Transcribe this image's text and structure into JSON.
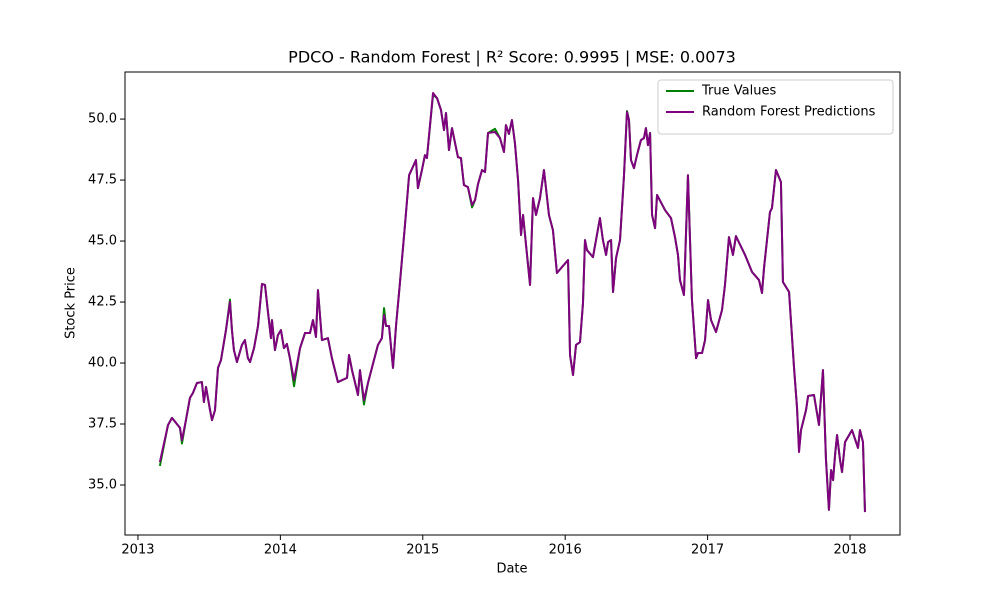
{
  "chart_data": {
    "type": "line",
    "title": "PDCO - Random Forest | R² Score: 0.9995 | MSE: 0.0073",
    "x_label": "Date",
    "y_label": "Stock Price",
    "x": [
      2013.154,
      2013.211,
      2013.239,
      2013.295,
      2013.309,
      2013.337,
      2013.365,
      2013.386,
      2013.414,
      2013.449,
      2013.463,
      2013.478,
      2013.506,
      2013.52,
      2013.541,
      2013.562,
      2013.583,
      2013.618,
      2013.646,
      2013.66,
      2013.674,
      2013.695,
      2013.73,
      2013.751,
      2013.772,
      2013.787,
      2013.815,
      2013.843,
      2013.871,
      2013.892,
      2013.913,
      2013.934,
      2013.941,
      2013.962,
      2013.983,
      2014.004,
      2014.025,
      2014.046,
      2014.067,
      2014.096,
      2014.138,
      2014.173,
      2014.208,
      2014.229,
      2014.25,
      2014.264,
      2014.292,
      2014.334,
      2014.362,
      2014.404,
      2014.468,
      2014.482,
      2014.503,
      2014.545,
      2014.559,
      2014.587,
      2014.615,
      2014.685,
      2014.713,
      2014.728,
      2014.742,
      2014.763,
      2014.791,
      2014.812,
      2014.84,
      2014.875,
      2014.904,
      2014.952,
      2014.966,
      2014.994,
      2015.015,
      2015.029,
      2015.072,
      2015.1,
      2015.128,
      2015.149,
      2015.163,
      2015.184,
      2015.205,
      2015.247,
      2015.268,
      2015.289,
      2015.317,
      2015.346,
      2015.367,
      2015.388,
      2015.416,
      2015.437,
      2015.458,
      2015.507,
      2015.542,
      2015.57,
      2015.584,
      2015.605,
      2015.626,
      2015.647,
      2015.669,
      2015.69,
      2015.704,
      2015.718,
      2015.739,
      2015.753,
      2015.774,
      2015.795,
      2015.823,
      2015.851,
      2015.886,
      2015.914,
      2015.942,
      2015.971,
      2016.02,
      2016.034,
      2016.055,
      2016.076,
      2016.104,
      2016.125,
      2016.139,
      2016.153,
      2016.195,
      2016.244,
      2016.265,
      2016.287,
      2016.301,
      2016.322,
      2016.336,
      2016.357,
      2016.385,
      2016.413,
      2016.434,
      2016.448,
      2016.462,
      2016.483,
      2016.504,
      2016.532,
      2016.553,
      2016.567,
      2016.581,
      2016.596,
      2016.61,
      2016.631,
      2016.645,
      2016.701,
      2016.743,
      2016.771,
      2016.792,
      2016.806,
      2016.834,
      2016.862,
      2016.89,
      2016.919,
      2016.933,
      2016.961,
      2016.982,
      2017.003,
      2017.024,
      2017.059,
      2017.101,
      2017.122,
      2017.15,
      2017.178,
      2017.199,
      2017.263,
      2017.312,
      2017.361,
      2017.382,
      2017.396,
      2017.438,
      2017.452,
      2017.48,
      2017.515,
      2017.529,
      2017.572,
      2017.607,
      2017.628,
      2017.642,
      2017.656,
      2017.691,
      2017.706,
      2017.747,
      2017.782,
      2017.81,
      2017.831,
      2017.852,
      2017.867,
      2017.881,
      2017.895,
      2017.909,
      2017.93,
      2017.944,
      2017.965,
      2018.014,
      2018.056,
      2018.07,
      2018.091,
      2018.105
    ],
    "series": [
      {
        "name": "True Values",
        "color": "#008000",
        "values": [
          35.78,
          37.46,
          37.75,
          37.34,
          36.7,
          37.66,
          38.57,
          38.77,
          39.18,
          39.22,
          38.4,
          39.02,
          38.07,
          37.66,
          38.07,
          39.8,
          40.12,
          41.35,
          42.6,
          41.35,
          40.53,
          40.04,
          40.74,
          40.94,
          40.2,
          40.04,
          40.61,
          41.52,
          43.24,
          43.2,
          42.09,
          41.02,
          41.76,
          40.53,
          41.15,
          41.35,
          40.61,
          40.78,
          40.2,
          39.05,
          40.61,
          41.23,
          41.23,
          41.76,
          41.07,
          42.99,
          40.94,
          41.02,
          40.2,
          39.22,
          39.39,
          40.33,
          39.71,
          38.69,
          39.71,
          38.3,
          39.18,
          40.74,
          41.02,
          42.25,
          41.52,
          41.52,
          39.8,
          41.52,
          43.32,
          45.66,
          47.7,
          48.32,
          47.17,
          47.91,
          48.52,
          48.4,
          51.0,
          50.86,
          50.37,
          49.55,
          50.25,
          48.73,
          49.63,
          48.44,
          48.4,
          47.3,
          47.21,
          46.38,
          46.68,
          47.34,
          47.91,
          47.83,
          49.43,
          49.6,
          49.22,
          48.65,
          49.75,
          49.39,
          49.96,
          49.02,
          47.5,
          45.25,
          46.07,
          45.25,
          44.02,
          43.2,
          46.76,
          46.07,
          46.76,
          47.91,
          46.07,
          45.45,
          43.69,
          43.89,
          44.22,
          40.33,
          39.51,
          40.74,
          40.86,
          42.46,
          45.04,
          44.63,
          44.34,
          45.94,
          45.04,
          44.43,
          44.96,
          45.04,
          42.91,
          44.3,
          45.04,
          47.7,
          50.33,
          49.96,
          48.32,
          47.99,
          48.52,
          49.14,
          49.22,
          49.63,
          48.93,
          49.43,
          46.07,
          45.53,
          46.89,
          46.27,
          45.94,
          45.16,
          44.43,
          43.4,
          42.79,
          47.7,
          42.58,
          40.2,
          40.41,
          40.41,
          40.94,
          42.58,
          41.76,
          41.27,
          42.17,
          43.2,
          45.16,
          44.43,
          45.2,
          44.43,
          43.73,
          43.4,
          42.87,
          43.89,
          46.19,
          46.35,
          47.91,
          47.42,
          43.32,
          42.91,
          39.8,
          38.16,
          36.45,
          37.25,
          38.07,
          38.65,
          38.69,
          37.46,
          39.71,
          36.1,
          33.98,
          35.61,
          35.2,
          36.23,
          37.05,
          36.02,
          35.53,
          36.76,
          37.25,
          36.52,
          37.25,
          36.76,
          33.89
        ]
      },
      {
        "name": "Random Forest Predictions",
        "color": "#800080",
        "values": [
          35.94,
          37.46,
          37.75,
          37.34,
          36.84,
          37.66,
          38.57,
          38.77,
          39.18,
          39.22,
          38.4,
          39.02,
          38.07,
          37.66,
          38.07,
          39.8,
          40.12,
          41.35,
          42.5,
          41.35,
          40.53,
          40.04,
          40.74,
          40.94,
          40.2,
          40.04,
          40.61,
          41.52,
          43.24,
          43.2,
          42.09,
          41.02,
          41.76,
          40.53,
          41.15,
          41.35,
          40.61,
          40.78,
          40.2,
          39.3,
          40.61,
          41.23,
          41.23,
          41.76,
          41.07,
          42.99,
          40.94,
          41.02,
          40.2,
          39.22,
          39.39,
          40.33,
          39.71,
          38.69,
          39.71,
          38.48,
          39.18,
          40.74,
          41.02,
          41.97,
          41.52,
          41.52,
          39.8,
          41.52,
          43.32,
          45.66,
          47.7,
          48.32,
          47.17,
          47.91,
          48.52,
          48.4,
          51.07,
          50.86,
          50.37,
          49.55,
          50.25,
          48.73,
          49.63,
          48.44,
          48.4,
          47.3,
          47.21,
          46.48,
          46.68,
          47.34,
          47.91,
          47.83,
          49.43,
          49.47,
          49.22,
          48.65,
          49.75,
          49.39,
          49.96,
          49.02,
          47.5,
          45.25,
          46.07,
          45.25,
          44.02,
          43.2,
          46.76,
          46.07,
          46.76,
          47.91,
          46.07,
          45.45,
          43.69,
          43.89,
          44.22,
          40.33,
          39.51,
          40.74,
          40.86,
          42.46,
          45.04,
          44.63,
          44.34,
          45.94,
          45.04,
          44.43,
          44.96,
          45.04,
          42.91,
          44.3,
          45.04,
          47.7,
          50.29,
          49.96,
          48.32,
          47.99,
          48.52,
          49.14,
          49.22,
          49.63,
          48.93,
          49.43,
          46.07,
          45.53,
          46.89,
          46.27,
          45.94,
          45.16,
          44.43,
          43.4,
          42.79,
          47.7,
          42.58,
          40.2,
          40.41,
          40.41,
          40.94,
          42.58,
          41.76,
          41.27,
          42.17,
          43.2,
          45.16,
          44.43,
          45.2,
          44.43,
          43.73,
          43.4,
          42.87,
          43.89,
          46.19,
          46.35,
          47.91,
          47.42,
          43.32,
          42.91,
          39.8,
          38.16,
          36.35,
          37.25,
          38.07,
          38.65,
          38.69,
          37.46,
          39.71,
          36.02,
          33.98,
          35.61,
          35.2,
          36.23,
          37.05,
          36.02,
          35.53,
          36.76,
          37.25,
          36.52,
          37.25,
          36.76,
          33.89
        ]
      }
    ],
    "xlim": [
      2012.909,
      2018.351
    ],
    "xticks": [
      2013,
      2014,
      2015,
      2016,
      2017,
      2018
    ],
    "ylim": [
      32.95,
      51.93
    ],
    "yticks": [
      {
        "value": 35,
        "label": "35.0"
      },
      37.5,
      {
        "value": 40,
        "label": "40.0"
      },
      42.5,
      {
        "value": 45,
        "label": "45.0"
      },
      47.5,
      {
        "value": 50,
        "label": "50.0"
      }
    ],
    "grid": false,
    "legend": "upper right"
  }
}
